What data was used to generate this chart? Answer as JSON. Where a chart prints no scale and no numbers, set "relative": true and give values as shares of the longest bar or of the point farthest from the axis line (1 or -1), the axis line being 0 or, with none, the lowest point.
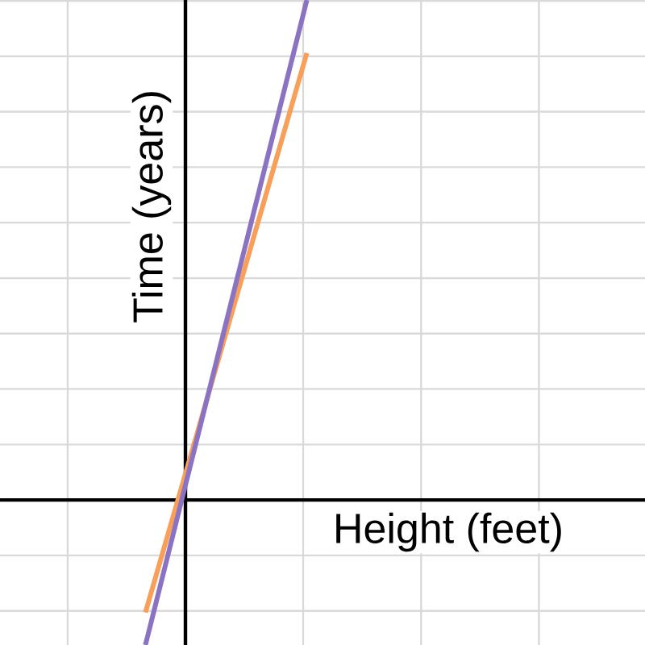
{
  "chart_data": {
    "type": "line",
    "relative": true,
    "xlabel": "Height (feet)",
    "ylabel": "Time (years)",
    "categories": [
      null,
      null
    ],
    "grid": true,
    "marker": "none",
    "line_style": "solid",
    "series": [
      {
        "color": "#f8a05a",
        "values": [
          -0.225,
          0.894
        ]
      },
      {
        "color": "#8b73c3",
        "values": [
          -0.29,
          1
        ]
      }
    ]
  }
}
